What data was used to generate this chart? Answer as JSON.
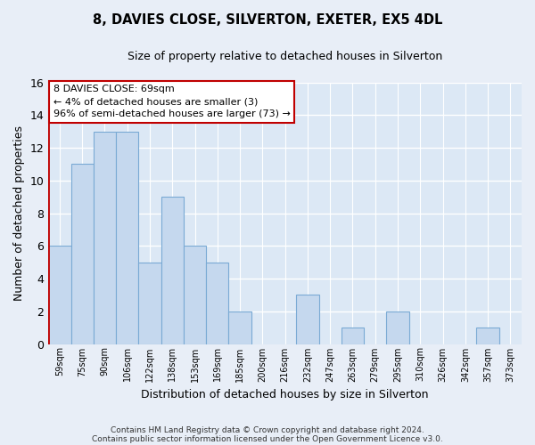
{
  "title": "8, DAVIES CLOSE, SILVERTON, EXETER, EX5 4DL",
  "subtitle": "Size of property relative to detached houses in Silverton",
  "xlabel": "Distribution of detached houses by size in Silverton",
  "ylabel": "Number of detached properties",
  "bar_labels": [
    "59sqm",
    "75sqm",
    "90sqm",
    "106sqm",
    "122sqm",
    "138sqm",
    "153sqm",
    "169sqm",
    "185sqm",
    "200sqm",
    "216sqm",
    "232sqm",
    "247sqm",
    "263sqm",
    "279sqm",
    "295sqm",
    "310sqm",
    "326sqm",
    "342sqm",
    "357sqm",
    "373sqm"
  ],
  "bar_values": [
    6,
    11,
    13,
    13,
    5,
    9,
    6,
    5,
    2,
    0,
    0,
    3,
    0,
    1,
    0,
    2,
    0,
    0,
    0,
    1,
    0
  ],
  "bar_color": "#c5d8ee",
  "bar_edge_color": "#7aaad4",
  "highlight_color": "#c00000",
  "ylim": [
    0,
    16
  ],
  "yticks": [
    0,
    2,
    4,
    6,
    8,
    10,
    12,
    14,
    16
  ],
  "annotation_title": "8 DAVIES CLOSE: 69sqm",
  "annotation_line1": "← 4% of detached houses are smaller (3)",
  "annotation_line2": "96% of semi-detached houses are larger (73) →",
  "footnote1": "Contains HM Land Registry data © Crown copyright and database right 2024.",
  "footnote2": "Contains public sector information licensed under the Open Government Licence v3.0.",
  "bg_color": "#e8eef7",
  "plot_bg_color": "#dce8f5",
  "grid_color": "#b8c8dc"
}
